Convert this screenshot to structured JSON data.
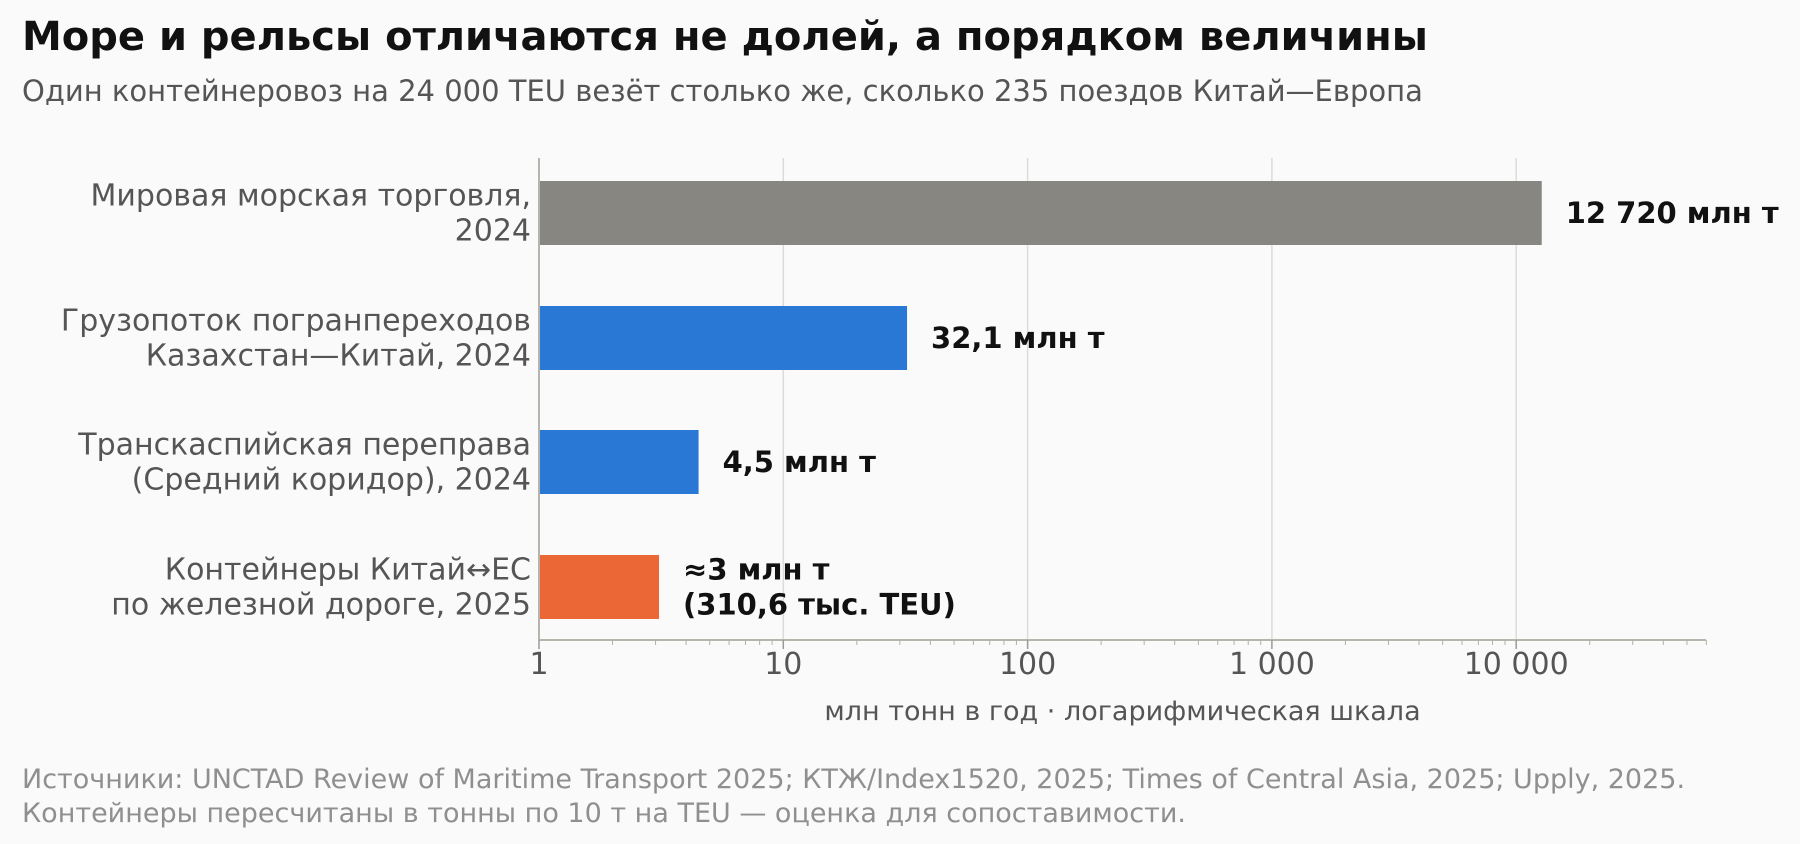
{
  "header": {
    "title": "Море и рельсы отличаются не долей, а порядком величины",
    "subtitle": "Один контейнеровоз на 24 000 TEU везёт столько же, сколько 235 поездов Китай—Европа"
  },
  "chart_data": {
    "type": "bar",
    "orientation": "horizontal",
    "x_scale": "log",
    "xlim": [
      1,
      60000
    ],
    "xlabel": "млн тонн в год · логарифмическая шкала",
    "x_ticks": [
      1,
      10,
      100,
      1000,
      10000
    ],
    "x_tick_labels": [
      "1",
      "10",
      "100",
      "1 000",
      "10 000"
    ],
    "grid": "vertical",
    "categories": [
      [
        "Мировая морская торговля,",
        "2024"
      ],
      [
        "Грузопоток погранпереходов",
        "Казахстан—Китай, 2024"
      ],
      [
        "Транскаспийская переправа",
        "(Средний коридор), 2024"
      ],
      [
        "Контейнеры Китай↔ЕС",
        "по железной дороге, 2025"
      ]
    ],
    "values": [
      12720,
      32.1,
      4.5,
      3.1
    ],
    "value_labels": [
      [
        "12 720 млн т"
      ],
      [
        "32,1 млн т"
      ],
      [
        "4,5 млн т"
      ],
      [
        "≈3 млн т",
        "(310,6 тыс. TEU)"
      ]
    ],
    "colors": [
      "#878680",
      "#2a78d6",
      "#2a78d6",
      "#eb6836"
    ]
  },
  "footer": {
    "line1": "Источники: UNCTAD Review of Maritime Transport 2025; КТЖ/Index1520, 2025; Times of Central Asia, 2025; Upply, 2025.",
    "line2": "Контейнеры пересчитаны в тонны по 10 т на TEU — оценка для сопоставимости."
  }
}
